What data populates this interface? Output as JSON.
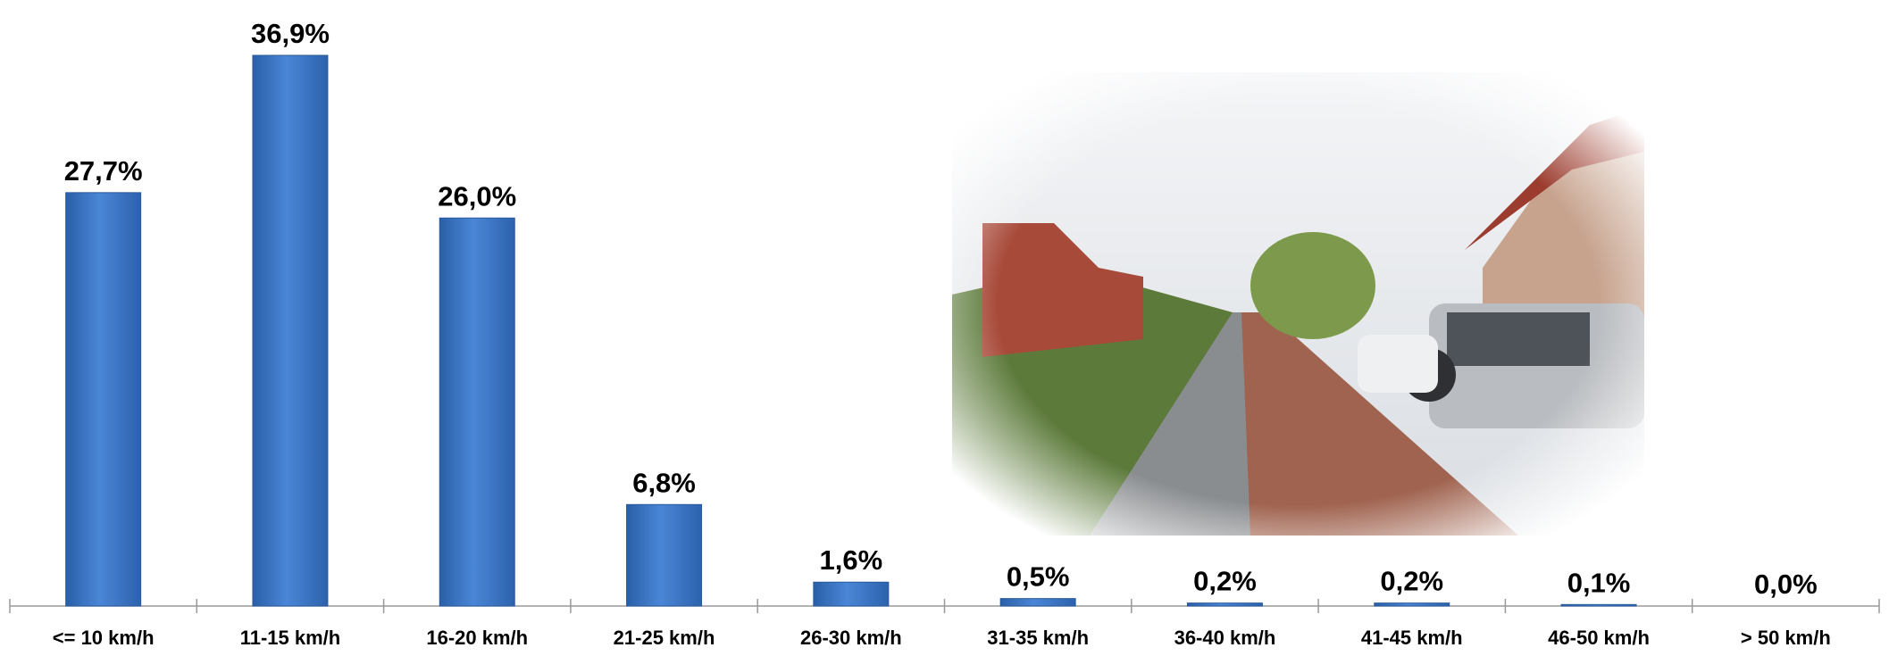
{
  "chart_data": {
    "type": "bar",
    "categories": [
      "<= 10 km/h",
      "11-15 km/h",
      "16-20 km/h",
      "21-25 km/h",
      "26-30 km/h",
      "31-35 km/h",
      "36-40 km/h",
      "41-45 km/h",
      "46-50 km/h",
      "> 50 km/h"
    ],
    "values": [
      27.7,
      36.9,
      26.0,
      6.8,
      1.6,
      0.5,
      0.2,
      0.2,
      0.1,
      0.0
    ],
    "value_labels": [
      "27,7%",
      "36,9%",
      "26,0%",
      "6,8%",
      "1,6%",
      "0,5%",
      "0,2%",
      "0,2%",
      "0,1%",
      "0,0%"
    ],
    "color": "#3a76c8"
  }
}
